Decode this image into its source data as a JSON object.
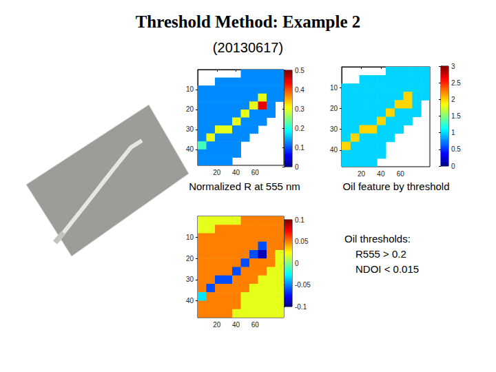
{
  "title": "Threshold Method: Example 2",
  "subtitle": "(20130617)",
  "thresholds": {
    "title": "Oil thresholds:",
    "lines": [
      "R555 > 0.2",
      "NDOI < 0.015"
    ]
  },
  "chart_data": [
    {
      "type": "heatmap",
      "title": "Normalized R at 555 nm",
      "grid": false,
      "x_bins": [
        0,
        9,
        18,
        27,
        36,
        45,
        54,
        63,
        72,
        81,
        90
      ],
      "y_bins": [
        0,
        4,
        8,
        12,
        16,
        20,
        24,
        28,
        32,
        36,
        40,
        44,
        48
      ],
      "xlim": [
        0,
        90
      ],
      "xticks": [
        20,
        40,
        60
      ],
      "ylim": [
        0,
        48
      ],
      "yticks": [
        10,
        20,
        30,
        40
      ],
      "colorbar": {
        "range": [
          0,
          0.5
        ],
        "ticks": [
          0,
          0.1,
          0.2,
          0.3,
          0.4,
          0.5
        ]
      },
      "cells": [
        [
          null,
          null,
          null,
          null,
          null,
          0.13,
          0.13,
          0.13,
          0.13,
          0.13
        ],
        [
          null,
          null,
          0.13,
          0.13,
          0.13,
          0.13,
          0.13,
          0.13,
          0.13,
          0.13
        ],
        [
          0.13,
          0.13,
          0.13,
          0.13,
          0.13,
          0.13,
          0.13,
          0.13,
          0.13,
          0.13
        ],
        [
          0.13,
          0.13,
          0.13,
          0.13,
          0.13,
          0.13,
          0.13,
          0.3,
          0.13,
          0.13
        ],
        [
          0.13,
          0.13,
          0.13,
          0.13,
          0.13,
          0.13,
          0.3,
          0.45,
          0.13,
          null
        ],
        [
          0.13,
          0.13,
          0.13,
          0.13,
          0.13,
          0.3,
          0.13,
          0.13,
          0.13,
          null
        ],
        [
          0.13,
          0.13,
          0.13,
          0.13,
          0.3,
          0.13,
          0.13,
          0.13,
          null,
          null
        ],
        [
          0.13,
          0.13,
          0.3,
          0.3,
          0.13,
          0.13,
          0.13,
          null,
          null,
          null
        ],
        [
          0.13,
          0.3,
          0.13,
          0.13,
          0.13,
          0.13,
          null,
          null,
          null,
          null
        ],
        [
          0.22,
          0.13,
          0.13,
          0.13,
          0.13,
          null,
          null,
          null,
          null,
          null
        ],
        [
          0.13,
          0.13,
          0.13,
          0.13,
          0.13,
          null,
          null,
          null,
          null,
          null
        ],
        [
          0.13,
          0.13,
          0.13,
          0.13,
          null,
          null,
          null,
          null,
          null,
          null
        ]
      ]
    },
    {
      "type": "heatmap",
      "title": "Oil feature by threshold",
      "grid": false,
      "x_bins": [
        0,
        9,
        18,
        27,
        36,
        45,
        54,
        63,
        72,
        81,
        90
      ],
      "y_bins": [
        0,
        4,
        8,
        12,
        16,
        20,
        24,
        28,
        32,
        36,
        40,
        44,
        48
      ],
      "xlim": [
        0,
        90
      ],
      "xticks": [
        20,
        40,
        60
      ],
      "ylim": [
        0,
        48
      ],
      "yticks": [
        10,
        20,
        30,
        40
      ],
      "colorbar": {
        "range": [
          0,
          3
        ],
        "ticks": [
          0,
          0.5,
          1,
          1.5,
          2,
          2.5,
          3
        ]
      },
      "cells": [
        [
          null,
          null,
          null,
          null,
          null,
          1,
          1,
          1,
          1,
          1
        ],
        [
          null,
          null,
          1,
          1,
          1,
          1,
          1,
          1,
          1,
          1
        ],
        [
          1,
          1,
          1,
          1,
          1,
          1,
          1,
          1,
          1,
          1
        ],
        [
          1,
          1,
          1,
          1,
          1,
          1,
          1,
          2,
          1,
          1
        ],
        [
          1,
          1,
          1,
          1,
          1,
          1,
          2,
          2,
          1,
          null
        ],
        [
          1,
          1,
          1,
          1,
          1,
          2,
          1,
          1,
          1,
          null
        ],
        [
          1,
          1,
          1,
          1,
          2,
          1,
          1,
          1,
          null,
          null
        ],
        [
          1,
          1,
          2,
          2,
          1,
          1,
          1,
          null,
          null,
          null
        ],
        [
          1,
          2,
          1,
          1,
          1,
          1,
          null,
          null,
          null,
          null
        ],
        [
          2,
          1,
          1,
          1,
          1,
          null,
          null,
          null,
          null,
          null
        ],
        [
          1,
          1,
          1,
          1,
          1,
          null,
          null,
          null,
          null,
          null
        ],
        [
          1,
          1,
          1,
          1,
          null,
          null,
          null,
          null,
          null,
          null
        ]
      ]
    },
    {
      "type": "heatmap",
      "grid": false,
      "x_bins": [
        0,
        9,
        18,
        27,
        36,
        45,
        54,
        63,
        72,
        81,
        90
      ],
      "y_bins": [
        0,
        4,
        8,
        12,
        16,
        20,
        24,
        28,
        32,
        36,
        40,
        44,
        48
      ],
      "xlim": [
        0,
        90
      ],
      "xticks": [
        20,
        40,
        60
      ],
      "ylim": [
        0,
        48
      ],
      "yticks": [
        10,
        20,
        30,
        40
      ],
      "colorbar": {
        "range": [
          -0.1,
          0.1
        ],
        "ticks": [
          -0.1,
          -0.05,
          0,
          0.05,
          0.1
        ]
      },
      "cells": [
        [
          0.02,
          0.02,
          0.02,
          0.02,
          0.02,
          0.05,
          0.05,
          0.05,
          0.05,
          0.05
        ],
        [
          0.02,
          0.02,
          0.05,
          0.05,
          0.05,
          0.05,
          0.05,
          0.05,
          0.05,
          0.05
        ],
        [
          0.05,
          0.05,
          0.05,
          0.05,
          0.05,
          0.05,
          0.05,
          0.05,
          0.05,
          0.05
        ],
        [
          0.05,
          0.05,
          0.05,
          0.05,
          0.05,
          0.05,
          0.05,
          -0.06,
          0.05,
          0.05
        ],
        [
          0.05,
          0.05,
          0.05,
          0.05,
          0.05,
          0.05,
          -0.06,
          -0.09,
          0.05,
          0.02
        ],
        [
          0.05,
          0.05,
          0.05,
          0.05,
          0.05,
          -0.06,
          0.05,
          0.05,
          0.05,
          0.02
        ],
        [
          0.05,
          0.05,
          0.05,
          0.05,
          -0.06,
          0.05,
          0.05,
          0.05,
          0.02,
          0.02
        ],
        [
          0.05,
          0.05,
          -0.06,
          -0.06,
          0.05,
          0.05,
          0.05,
          0.02,
          0.02,
          0.02
        ],
        [
          0.05,
          -0.06,
          0.05,
          0.05,
          0.05,
          0.05,
          0.02,
          0.02,
          0.02,
          0.02
        ],
        [
          -0.03,
          0.05,
          0.05,
          0.05,
          0.05,
          0.02,
          0.02,
          0.02,
          0.02,
          0.02
        ],
        [
          0.05,
          0.05,
          0.05,
          0.05,
          0.05,
          0.02,
          0.02,
          0.02,
          0.02,
          0.02
        ],
        [
          0.05,
          0.05,
          0.05,
          0.05,
          0.02,
          0.02,
          0.02,
          0.02,
          0.02,
          0.02
        ]
      ]
    }
  ]
}
